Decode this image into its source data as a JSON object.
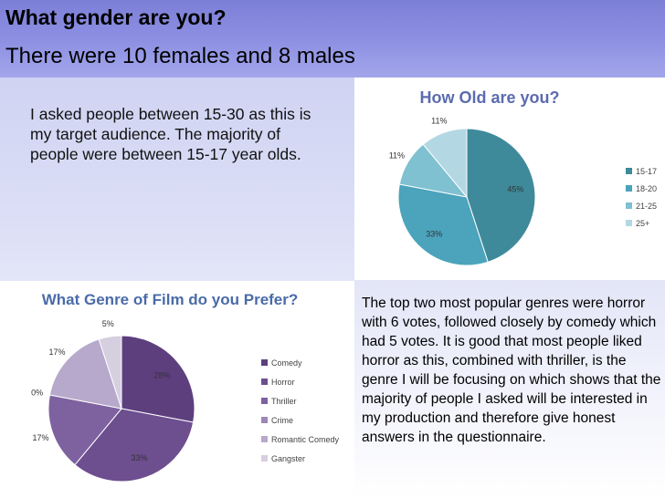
{
  "header": {
    "title": "What gender are you?",
    "subtitle": "There were 10 females and 8 males"
  },
  "age_description": "I asked people between 15-30 as this is my target audience. The majority of people were between 15-17 year olds.",
  "genre_description": "The top two most popular genres were horror with 6 votes, followed closely by comedy which had 5 votes. It is good that most people liked horror as this, combined with thriller, is the genre I will be focusing on which shows that the majority of people I asked will be interested in my production and therefore give honest answers in the questionnaire.",
  "chart_data": [
    {
      "type": "pie",
      "title": "How Old are you?",
      "categories": [
        "15-17",
        "18-20",
        "21-25",
        "25+"
      ],
      "values": [
        45,
        33,
        11,
        11
      ],
      "labels": [
        "45%",
        "33%",
        "11%",
        "11%"
      ],
      "colors": [
        "#3e8a9b",
        "#4ba3bc",
        "#7fc0d1",
        "#b3d8e3"
      ],
      "legend": "right"
    },
    {
      "type": "pie",
      "title": "What Genre of Film do you Prefer?",
      "categories": [
        "Comedy",
        "Horror",
        "Thriller",
        "Crime",
        "Romantic Comedy",
        "Gangster"
      ],
      "values": [
        28,
        33,
        17,
        0,
        17,
        5
      ],
      "labels": [
        "28%",
        "33%",
        "17%",
        "0%",
        "17%",
        "5%"
      ],
      "colors": [
        "#5e3f7e",
        "#6d4e8f",
        "#7e62a0",
        "#9d87b8",
        "#b7a9cb",
        "#d6cfe0"
      ],
      "legend": "right"
    }
  ]
}
